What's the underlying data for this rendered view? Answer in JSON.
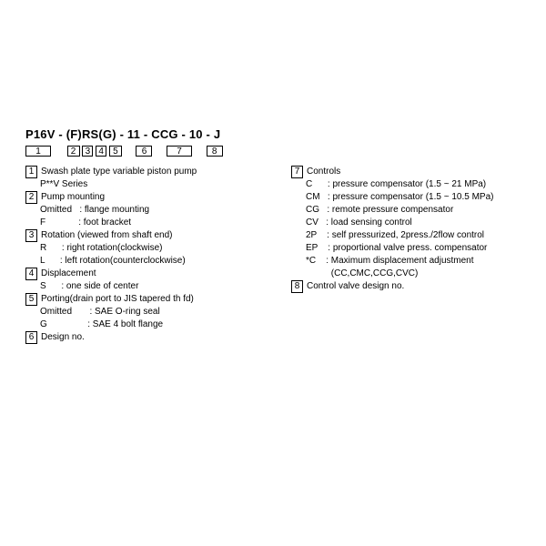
{
  "model_code": "P16V - (F)RS(G) - 11 - CCG - 10 - J",
  "box_numbers": [
    "1",
    "2",
    "3",
    "4",
    "5",
    "6",
    "7",
    "8"
  ],
  "left": [
    {
      "num": "1",
      "title": "Swash plate type variable piston pump",
      "subs": [
        "P**V Series"
      ]
    },
    {
      "num": "2",
      "title": "Pump mounting",
      "subs": [
        "Omitted   : flange mounting",
        "F             : foot bracket"
      ]
    },
    {
      "num": "3",
      "title": "Rotation (viewed from shaft end)",
      "subs": [
        "R      : right rotation(clockwise)",
        "L      : left rotation(counterclockwise)"
      ]
    },
    {
      "num": "4",
      "title": "Displacement",
      "subs": [
        "S      : one side of center"
      ]
    },
    {
      "num": "5",
      "title": "Porting(drain port to JIS tapered th  fd)",
      "subs": [
        "Omitted       : SAE O-ring seal",
        "G                : SAE 4 bolt flange"
      ]
    },
    {
      "num": "6",
      "title": "Design no.",
      "subs": []
    }
  ],
  "right": [
    {
      "num": "7",
      "title": "Controls",
      "subs": [
        "C      : pressure compensator (1.5 ~ 21 MPa)",
        "CM   : pressure compensator (1.5 ~ 10.5 MPa)",
        "CG   : remote pressure compensator",
        "CV   : load sensing control",
        "2P    : self pressurized, 2press./2flow control",
        "EP    : proportional valve press. compensator",
        "*C    : Maximum displacement adjustment",
        "          (CC,CMC,CCG,CVC)"
      ]
    },
    {
      "num": "8",
      "title": "Control valve design no.",
      "subs": []
    }
  ]
}
